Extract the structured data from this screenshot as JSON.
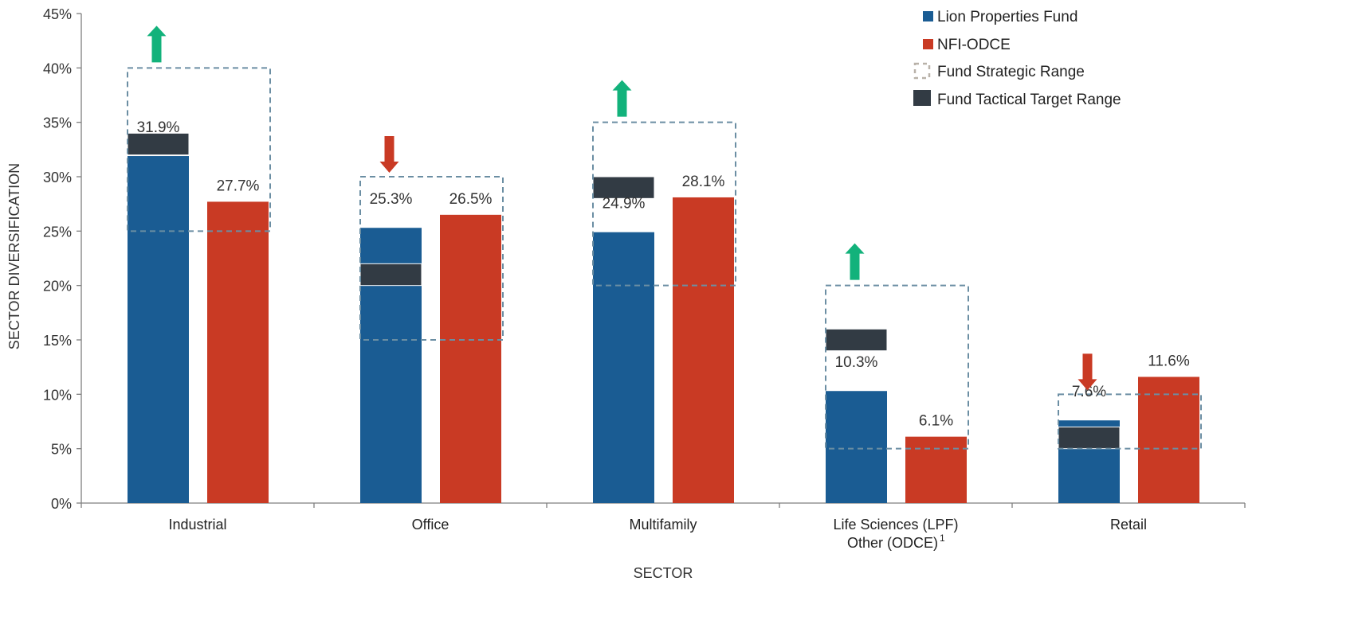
{
  "chart_data": {
    "type": "bar",
    "xlabel": "SECTOR",
    "ylabel": "SECTOR DIVERSIFICATION",
    "ylim": [
      0,
      45
    ],
    "y_ticks": [
      "0%",
      "5%",
      "10%",
      "15%",
      "20%",
      "25%",
      "30%",
      "35%",
      "40%",
      "45%"
    ],
    "categories": [
      {
        "line1": "Industrial",
        "line2": "",
        "sup": ""
      },
      {
        "line1": "Office",
        "line2": "",
        "sup": ""
      },
      {
        "line1": "Multifamily",
        "line2": "",
        "sup": ""
      },
      {
        "line1": "Life Sciences (LPF)",
        "line2": "Other (ODCE)",
        "sup": "1"
      },
      {
        "line1": "Retail",
        "line2": "",
        "sup": ""
      }
    ],
    "series": [
      {
        "name": "Lion Properties Fund",
        "color": "#1a5c93",
        "values": [
          31.9,
          25.3,
          24.9,
          10.3,
          7.6
        ],
        "labels": [
          "31.9%",
          "25.3%",
          "24.9%",
          "10.3%",
          "7.6%"
        ]
      },
      {
        "name": "NFI-ODCE",
        "color": "#c93a24",
        "values": [
          27.7,
          26.5,
          28.1,
          6.1,
          11.6
        ],
        "labels": [
          "27.7%",
          "26.5%",
          "28.1%",
          "6.1%",
          "11.6%"
        ]
      }
    ],
    "strategic_range": {
      "name": "Fund Strategic Range",
      "ranges": [
        [
          25,
          40
        ],
        [
          15,
          30
        ],
        [
          20,
          35
        ],
        [
          5,
          20
        ],
        [
          5,
          10
        ]
      ]
    },
    "tactical_target_range": {
      "name": "Fund Tactical Target Range",
      "color": "#323b44",
      "ranges": [
        [
          32,
          34
        ],
        [
          20,
          22
        ],
        [
          28,
          30
        ],
        [
          14,
          16
        ],
        [
          5,
          7
        ]
      ]
    },
    "direction_arrows": [
      "up",
      "down",
      "up",
      "up",
      "down"
    ],
    "arrow_colors": {
      "up": "#12b27b",
      "down": "#c93a24"
    },
    "legend_position": "top-right",
    "grid": false
  }
}
